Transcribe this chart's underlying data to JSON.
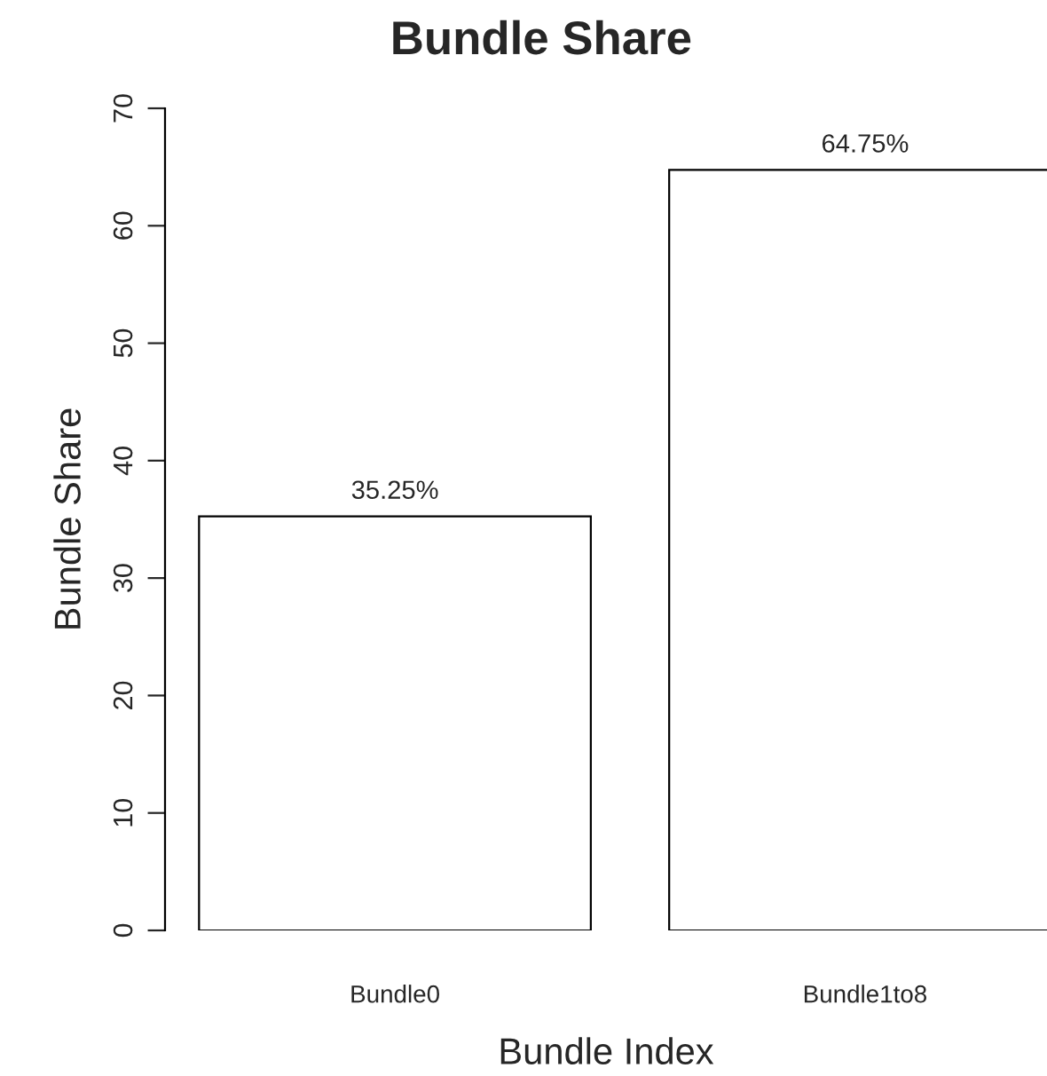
{
  "chart_data": {
    "type": "bar",
    "title": "Bundle Share",
    "xlabel": "Bundle Index",
    "ylabel": "Bundle Share",
    "categories": [
      "Bundle0",
      "Bundle1to8"
    ],
    "values": [
      35.25,
      64.75
    ],
    "value_labels": [
      "35.25%",
      "64.75%"
    ],
    "color": "#ffffff",
    "ylim": [
      0,
      70
    ],
    "yticks": [
      0,
      10,
      20,
      30,
      40,
      50,
      60,
      70
    ],
    "grid": false,
    "legend": false
  }
}
